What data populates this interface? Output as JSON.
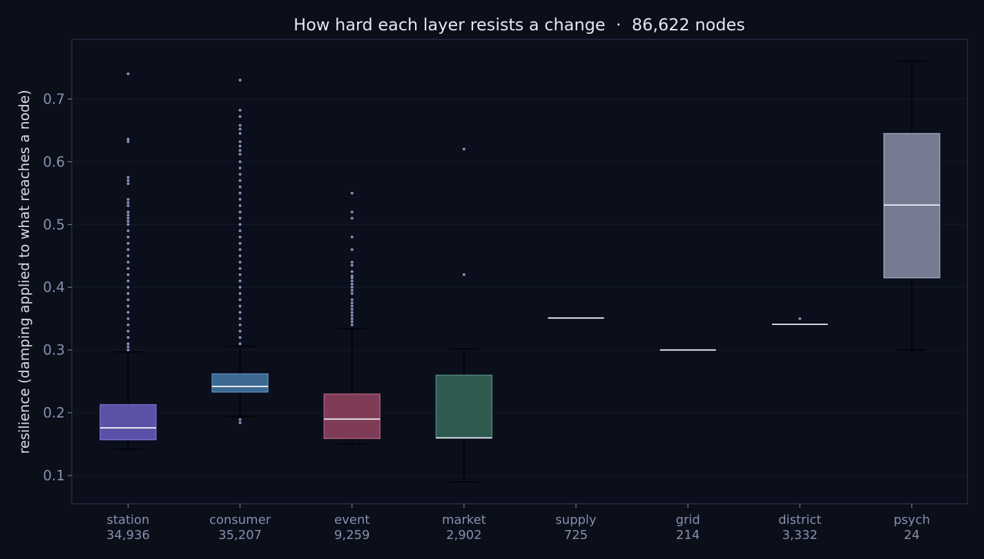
{
  "chart_data": {
    "type": "box",
    "title": "How hard each layer resists a change  ·  86,622 nodes",
    "ylabel": "resilience (damping applied to what reaches a node)",
    "xlabel": "",
    "ylim": [
      0.055,
      0.795
    ],
    "yticks": [
      "0.1",
      "0.2",
      "0.3",
      "0.4",
      "0.5",
      "0.6",
      "0.7"
    ],
    "grid": true,
    "categories": [
      {
        "name": "station",
        "count": "34,936",
        "color": "#5b52a8",
        "edge": "#7c74d4",
        "whisker_low": 0.142,
        "q1": 0.157,
        "median": 0.176,
        "q3": 0.213,
        "whisker_high": 0.297,
        "outliers": [
          0.74,
          0.636,
          0.632,
          0.575,
          0.57,
          0.565,
          0.54,
          0.535,
          0.53,
          0.52,
          0.515,
          0.51,
          0.505,
          0.5,
          0.49,
          0.48,
          0.47,
          0.46,
          0.45,
          0.44,
          0.43,
          0.42,
          0.41,
          0.4,
          0.39,
          0.38,
          0.37,
          0.36,
          0.35,
          0.34,
          0.33,
          0.32,
          0.31,
          0.305,
          0.3
        ]
      },
      {
        "name": "consumer",
        "count": "35,207",
        "color": "#3d6a93",
        "edge": "#5f8fbd",
        "whisker_low": 0.194,
        "q1": 0.233,
        "median": 0.242,
        "q3": 0.262,
        "whisker_high": 0.306,
        "outliers": [
          0.73,
          0.682,
          0.672,
          0.658,
          0.652,
          0.645,
          0.632,
          0.625,
          0.618,
          0.612,
          0.6,
          0.59,
          0.58,
          0.57,
          0.56,
          0.55,
          0.54,
          0.53,
          0.52,
          0.51,
          0.5,
          0.49,
          0.48,
          0.47,
          0.46,
          0.45,
          0.44,
          0.43,
          0.42,
          0.41,
          0.4,
          0.39,
          0.38,
          0.37,
          0.36,
          0.35,
          0.34,
          0.33,
          0.32,
          0.31,
          0.189,
          0.184
        ]
      },
      {
        "name": "event",
        "count": "9,259",
        "color": "#7e3c57",
        "edge": "#b0607f",
        "whisker_low": 0.15,
        "q1": 0.159,
        "median": 0.19,
        "q3": 0.23,
        "whisker_high": 0.334,
        "outliers": [
          0.55,
          0.52,
          0.51,
          0.48,
          0.46,
          0.44,
          0.435,
          0.425,
          0.418,
          0.415,
          0.41,
          0.405,
          0.4,
          0.395,
          0.39,
          0.38,
          0.375,
          0.37,
          0.365,
          0.36,
          0.355,
          0.35,
          0.345,
          0.34
        ]
      },
      {
        "name": "market",
        "count": "2,902",
        "color": "#2e5a50",
        "edge": "#4f8a7a",
        "whisker_low": 0.09,
        "q1": 0.16,
        "median": 0.16,
        "q3": 0.26,
        "whisker_high": 0.301,
        "outliers": [
          0.62,
          0.42
        ]
      },
      {
        "name": "supply",
        "count": "725",
        "color": "#3a4060",
        "edge": "#5a6080",
        "whisker_low": 0.351,
        "q1": 0.351,
        "median": 0.351,
        "q3": 0.351,
        "whisker_high": 0.351,
        "outliers": []
      },
      {
        "name": "grid",
        "count": "214",
        "color": "#3a4060",
        "edge": "#5a6080",
        "whisker_low": 0.3,
        "q1": 0.3,
        "median": 0.3,
        "q3": 0.3,
        "whisker_high": 0.3,
        "outliers": []
      },
      {
        "name": "district",
        "count": "3,332",
        "color": "#3a4060",
        "edge": "#5a6080",
        "whisker_low": 0.341,
        "q1": 0.341,
        "median": 0.341,
        "q3": 0.341,
        "whisker_high": 0.341,
        "outliers": [
          0.35
        ]
      },
      {
        "name": "psych",
        "count": "24",
        "color": "#777b92",
        "edge": "#a3a7bd",
        "whisker_low": 0.3,
        "q1": 0.415,
        "median": 0.531,
        "q3": 0.645,
        "whisker_high": 0.76,
        "outliers": []
      }
    ]
  },
  "colors": {
    "background": "#0b0f1a",
    "plot_background": "#0b0f1c",
    "frame": "#262b45",
    "grid": "#151a2a",
    "median_line": "#f2f2f7",
    "whisker": "#000000",
    "outlier": "#8a8fb5"
  }
}
